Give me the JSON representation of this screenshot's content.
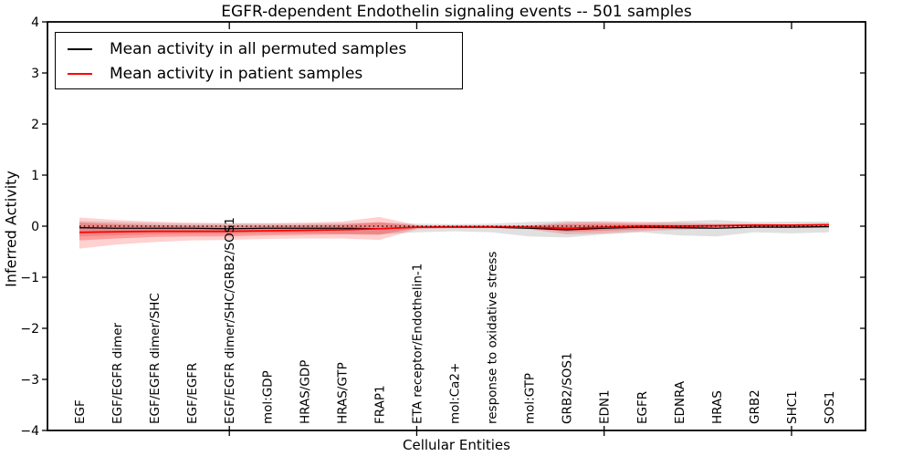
{
  "page": {
    "background": "#ffffff"
  },
  "chart_data": {
    "type": "line",
    "title": "EGFR-dependent Endothelin signaling events -- 501 samples",
    "xlabel": "Cellular Entities",
    "ylabel": "Inferred Activity",
    "ylim": [
      -4,
      4
    ],
    "yticks": [
      -4,
      -3,
      -2,
      -1,
      0,
      1,
      2,
      3,
      4
    ],
    "x_major_tick_indices": [
      4,
      9,
      14,
      19
    ],
    "grid": false,
    "legend": {
      "position": "upper left",
      "entries": [
        {
          "label": "Mean activity in all permuted samples",
          "color": "#000000"
        },
        {
          "label": "Mean activity in patient samples",
          "color": "#ff0000"
        }
      ]
    },
    "categories": [
      "EGF",
      "EGF/EGFR dimer",
      "EGF/EGFR dimer/SHC",
      "EGF/EGFR",
      "EGF/EGFR dimer/SHC/GRB2/SOS1",
      "mol:GDP",
      "HRAS/GDP",
      "HRAS/GTP",
      "FRAP1",
      "ETA receptor/Endothelin-1",
      "mol:Ca2+",
      "response to oxidative stress",
      "mol:GTP",
      "GRB2/SOS1",
      "EDN1",
      "EGFR",
      "EDNRA",
      "HRAS",
      "GRB2",
      "SHC1",
      "SOS1"
    ],
    "series": [
      {
        "name": "Mean activity in all permuted samples",
        "color": "#000000",
        "line_style": "solid",
        "values": [
          -0.03,
          -0.04,
          -0.04,
          -0.04,
          -0.05,
          -0.04,
          -0.04,
          -0.04,
          -0.05,
          -0.02,
          -0.02,
          -0.02,
          -0.04,
          -0.07,
          -0.04,
          -0.02,
          -0.03,
          -0.04,
          -0.02,
          -0.02,
          -0.01
        ]
      },
      {
        "name": "Mean activity in patient samples",
        "color": "#ff0000",
        "line_style": "solid",
        "values": [
          -0.12,
          -0.11,
          -0.1,
          -0.1,
          -0.1,
          -0.09,
          -0.08,
          -0.07,
          -0.05,
          -0.02,
          -0.01,
          -0.01,
          -0.02,
          -0.04,
          -0.02,
          0.0,
          0.0,
          0.01,
          0.02,
          0.02,
          0.03
        ]
      },
      {
        "name": "zero reference",
        "color": "#000000",
        "line_style": "dotted",
        "values": [
          0,
          0,
          0,
          0,
          0,
          0,
          0,
          0,
          0,
          0,
          0,
          0,
          0,
          0,
          0,
          0,
          0,
          0,
          0,
          0,
          0
        ]
      }
    ],
    "bands": [
      {
        "name": "permuted samples activity range",
        "color": "#000000",
        "opacity": 0.12,
        "hi": [
          0.1,
          0.08,
          0.06,
          0.05,
          0.05,
          0.05,
          0.05,
          0.06,
          0.07,
          0.05,
          0.04,
          0.05,
          0.08,
          0.1,
          0.08,
          0.06,
          0.1,
          0.12,
          0.08,
          0.09,
          0.09
        ],
        "lo": [
          -0.2,
          -0.18,
          -0.16,
          -0.15,
          -0.15,
          -0.14,
          -0.14,
          -0.15,
          -0.16,
          -0.12,
          -0.1,
          -0.12,
          -0.2,
          -0.22,
          -0.16,
          -0.12,
          -0.18,
          -0.2,
          -0.12,
          -0.14,
          -0.12
        ]
      },
      {
        "name": "patient samples activity range (outer)",
        "color": "#ff0000",
        "opacity": 0.18,
        "hi": [
          0.17,
          0.12,
          0.09,
          0.07,
          0.06,
          0.06,
          0.07,
          0.09,
          0.18,
          0.02,
          0.01,
          0.01,
          0.02,
          0.08,
          0.1,
          0.09,
          0.07,
          0.05,
          0.05,
          0.04,
          0.05
        ],
        "lo": [
          -0.44,
          -0.36,
          -0.31,
          -0.28,
          -0.27,
          -0.25,
          -0.24,
          -0.24,
          -0.27,
          -0.06,
          -0.04,
          -0.04,
          -0.06,
          -0.16,
          -0.14,
          -0.1,
          -0.07,
          -0.04,
          -0.02,
          -0.02,
          -0.02
        ]
      },
      {
        "name": "patient samples activity range (inner)",
        "color": "#ff0000",
        "opacity": 0.25,
        "hi": [
          0.07,
          0.04,
          0.02,
          0.01,
          0.01,
          0.01,
          0.02,
          0.03,
          0.08,
          0.01,
          0.0,
          0.0,
          0.01,
          0.04,
          0.05,
          0.04,
          0.03,
          0.03,
          0.03,
          0.03,
          0.04
        ],
        "lo": [
          -0.28,
          -0.24,
          -0.21,
          -0.2,
          -0.2,
          -0.18,
          -0.17,
          -0.16,
          -0.17,
          -0.04,
          -0.02,
          -0.02,
          -0.04,
          -0.11,
          -0.09,
          -0.06,
          -0.04,
          -0.02,
          -0.01,
          -0.01,
          -0.01
        ]
      }
    ]
  }
}
